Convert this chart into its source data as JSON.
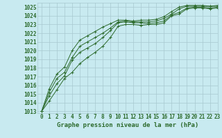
{
  "title": "Graphe pression niveau de la mer (hPa)",
  "background_color": "#c8eaf0",
  "grid_color": "#a8c8d0",
  "line_color": "#2d6b2d",
  "xlim": [
    -0.5,
    23
  ],
  "ylim": [
    1012.8,
    1025.5
  ],
  "yticks": [
    1013,
    1014,
    1015,
    1016,
    1017,
    1018,
    1019,
    1020,
    1021,
    1022,
    1023,
    1024,
    1025
  ],
  "xticks": [
    0,
    1,
    2,
    3,
    4,
    5,
    6,
    7,
    8,
    9,
    10,
    11,
    12,
    13,
    14,
    15,
    16,
    17,
    18,
    19,
    20,
    21,
    22,
    23
  ],
  "series": [
    [
      1013.0,
      1014.8,
      1016.2,
      1017.1,
      1018.9,
      1019.8,
      1020.3,
      1020.8,
      1021.5,
      1022.3,
      1023.2,
      1023.3,
      1023.2,
      1023.2,
      1023.1,
      1023.2,
      1023.4,
      1024.1,
      1024.4,
      1024.9,
      1025.0,
      1025.0,
      1024.9,
      1025.0
    ],
    [
      1013.0,
      1015.2,
      1016.8,
      1017.5,
      1019.2,
      1020.5,
      1021.0,
      1021.5,
      1022.0,
      1022.6,
      1023.3,
      1023.4,
      1023.3,
      1023.3,
      1023.3,
      1023.4,
      1023.7,
      1024.2,
      1024.8,
      1025.1,
      1025.1,
      1025.1,
      1025.1,
      1025.1
    ],
    [
      1013.0,
      1014.2,
      1015.5,
      1016.8,
      1017.5,
      1018.5,
      1019.2,
      1019.8,
      1020.5,
      1021.5,
      1022.8,
      1023.0,
      1023.0,
      1022.9,
      1023.0,
      1023.0,
      1023.2,
      1024.0,
      1024.2,
      1024.8,
      1024.9,
      1024.9,
      1024.8,
      1024.9
    ],
    [
      1013.0,
      1015.6,
      1017.3,
      1018.1,
      1020.0,
      1021.2,
      1021.7,
      1022.2,
      1022.7,
      1023.1,
      1023.5,
      1023.5,
      1023.4,
      1023.5,
      1023.5,
      1023.6,
      1023.9,
      1024.5,
      1025.0,
      1025.2,
      1025.2,
      1025.2,
      1025.1,
      1025.2
    ]
  ],
  "tick_fontsize": 5.5,
  "xlabel_fontsize": 6.5
}
